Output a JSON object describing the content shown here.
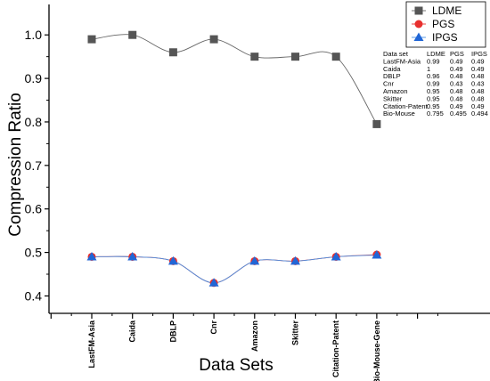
{
  "chart_data": {
    "type": "line",
    "xlabel": "Data Sets",
    "ylabel": "Compression Ratio",
    "ylim": [
      0.36,
      1.07
    ],
    "yticks": [
      "0.4",
      "0.5",
      "0.6",
      "0.7",
      "0.8",
      "0.9",
      "1.0"
    ],
    "categories": [
      "LastFM-Asia",
      "Caida",
      "DBLP",
      "Cnr",
      "Amazon",
      "Skitter",
      "Citation-Patent",
      "Bio-Mouse-Gene"
    ],
    "series": [
      {
        "name": "LDME",
        "color": "#555555",
        "marker": "square",
        "values": [
          0.99,
          1.0,
          0.96,
          0.99,
          0.95,
          0.95,
          0.95,
          0.795
        ]
      },
      {
        "name": "PGS",
        "color": "#e8302e",
        "marker": "circle",
        "values": [
          0.49,
          0.49,
          0.48,
          0.43,
          0.48,
          0.48,
          0.49,
          0.495
        ]
      },
      {
        "name": "IPGS",
        "color": "#2166d6",
        "marker": "triangle",
        "values": [
          0.49,
          0.49,
          0.48,
          0.43,
          0.48,
          0.48,
          0.49,
          0.494
        ]
      }
    ],
    "legend_position": "top-right",
    "grid": false,
    "table": {
      "headers": [
        "Data set",
        "LDME",
        "PGS",
        "IPGS"
      ],
      "rows": [
        [
          "LastFM-Asia",
          "0.99",
          "0.49",
          "0.49"
        ],
        [
          "Caida",
          "1",
          "0.49",
          "0.49"
        ],
        [
          "DBLP",
          "0.96",
          "0.48",
          "0.48"
        ],
        [
          "Cnr",
          "0.99",
          "0.43",
          "0.43"
        ],
        [
          "Amazon",
          "0.95",
          "0.48",
          "0.48"
        ],
        [
          "Skitter",
          "0.95",
          "0.48",
          "0.48"
        ],
        [
          "Citation-Patent",
          "0.95",
          "0.49",
          "0.49"
        ],
        [
          "Bio-Mouse",
          "0.795",
          "0.495",
          "0.494"
        ]
      ]
    }
  }
}
